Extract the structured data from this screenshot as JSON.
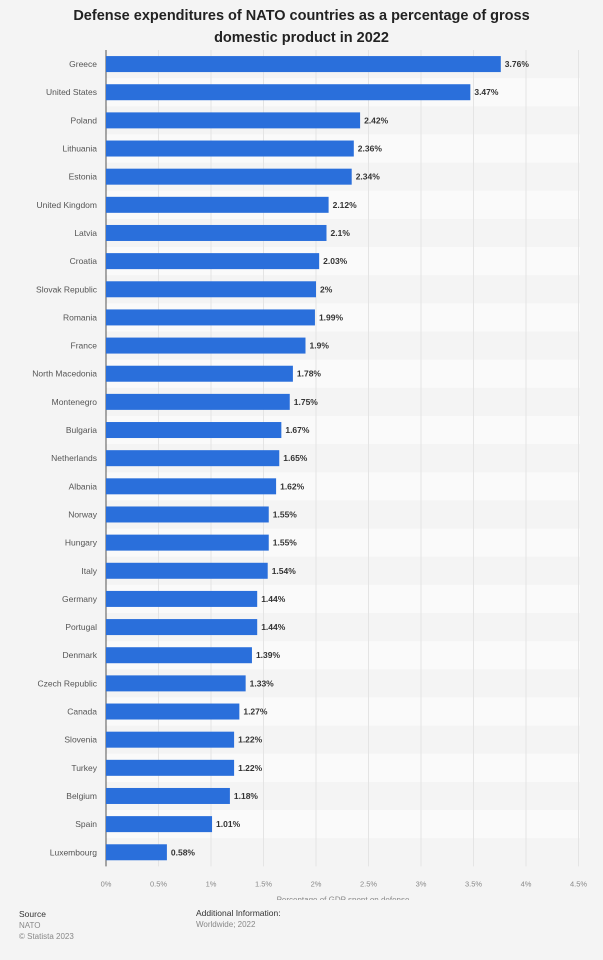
{
  "chart_data": {
    "type": "bar",
    "orientation": "horizontal",
    "title": "Defense expenditures of NATO countries as a percentage of gross domestic product in 2022",
    "xlabel": "Percentage of GDP spent on defense",
    "ylabel": "",
    "xlim": [
      0,
      4.5
    ],
    "ticks": [
      "0%",
      "0.5%",
      "1%",
      "1.5%",
      "2%",
      "2.5%",
      "3%",
      "3.5%",
      "4%",
      "4.5%"
    ],
    "tick_values": [
      0,
      0.5,
      1,
      1.5,
      2,
      2.5,
      3,
      3.5,
      4,
      4.5
    ],
    "categories": [
      "Greece",
      "United States",
      "Poland",
      "Lithuania",
      "Estonia",
      "United Kingdom",
      "Latvia",
      "Croatia",
      "Slovak Republic",
      "Romania",
      "France",
      "North Macedonia",
      "Montenegro",
      "Bulgaria",
      "Netherlands",
      "Albania",
      "Norway",
      "Hungary",
      "Italy",
      "Germany",
      "Portugal",
      "Denmark",
      "Czech Republic",
      "Canada",
      "Slovenia",
      "Turkey",
      "Belgium",
      "Spain",
      "Luxembourg"
    ],
    "values": [
      3.76,
      3.47,
      2.42,
      2.36,
      2.34,
      2.12,
      2.1,
      2.03,
      2,
      1.99,
      1.9,
      1.78,
      1.75,
      1.67,
      1.65,
      1.62,
      1.55,
      1.55,
      1.54,
      1.44,
      1.44,
      1.39,
      1.33,
      1.27,
      1.22,
      1.22,
      1.18,
      1.01,
      0.58
    ],
    "labels": [
      "3.76%",
      "3.47%",
      "2.42%",
      "2.36%",
      "2.34%",
      "2.12%",
      "2.1%",
      "2.03%",
      "2%",
      "1.99%",
      "1.9%",
      "1.78%",
      "1.75%",
      "1.67%",
      "1.65%",
      "1.62%",
      "1.55%",
      "1.55%",
      "1.54%",
      "1.44%",
      "1.44%",
      "1.39%",
      "1.33%",
      "1.27%",
      "1.22%",
      "1.22%",
      "1.18%",
      "1.01%",
      "0.58%"
    ],
    "bar_color": "#2a6fdb",
    "grid": true
  },
  "footer": {
    "source_heading": "Source",
    "source": "NATO",
    "copyright": "© Statista 2023",
    "info_heading": "Additional Information:",
    "info": "Worldwide; 2022"
  }
}
